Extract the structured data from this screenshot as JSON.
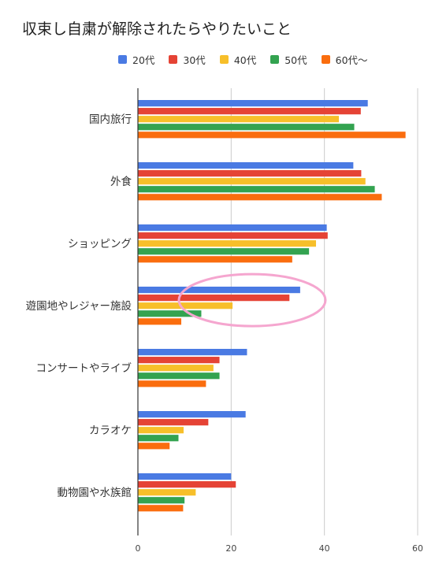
{
  "chart_data": {
    "type": "bar",
    "orientation": "horizontal",
    "title": "収束し自粛が解除されたらやりたいこと",
    "xlabel": "",
    "ylabel": "",
    "xlim": [
      0,
      60
    ],
    "xticks": [
      0,
      20,
      40,
      60
    ],
    "grid": true,
    "legend_position": "top",
    "categories": [
      "国内旅行",
      "外食",
      "ショッピング",
      "遊園地やレジャー施設",
      "コンサートやライブ",
      "カラオケ",
      "動物園や水族館"
    ],
    "series": [
      {
        "name": "20代",
        "color": "#4a7ae3",
        "values": [
          49.3,
          46.2,
          40.5,
          34.8,
          23.4,
          23.1,
          20.0
        ]
      },
      {
        "name": "30代",
        "color": "#e54335",
        "values": [
          47.8,
          47.9,
          40.7,
          32.5,
          17.5,
          15.1,
          21.0
        ]
      },
      {
        "name": "40代",
        "color": "#f7bf2a",
        "values": [
          43.1,
          48.8,
          38.2,
          20.3,
          16.2,
          9.8,
          12.4
        ]
      },
      {
        "name": "50代",
        "color": "#33a350",
        "values": [
          46.4,
          50.8,
          36.7,
          13.6,
          17.5,
          8.7,
          10.0
        ]
      },
      {
        "name": "60代〜",
        "color": "#fa6d0e",
        "values": [
          57.4,
          52.3,
          33.1,
          9.3,
          14.6,
          6.8,
          9.7
        ]
      }
    ],
    "annotation": {
      "shape": "ellipse",
      "color": "#f5a6cf",
      "target_category": "遊園地やレジャー施設"
    }
  }
}
